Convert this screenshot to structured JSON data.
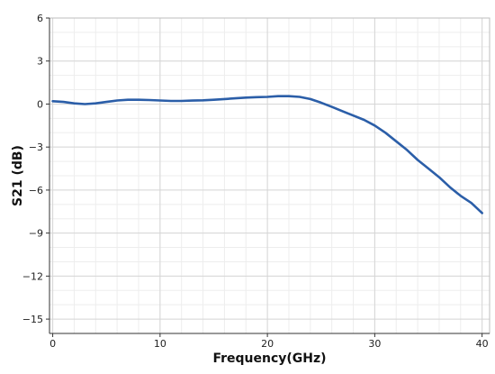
{
  "chart_data": {
    "type": "line",
    "title": "",
    "xlabel": "Frequency(GHz)",
    "ylabel": "S21 (dB)",
    "xlim": [
      -0.3,
      40.7
    ],
    "ylim": [
      -16,
      6
    ],
    "xticks": [
      0,
      10,
      20,
      30,
      40
    ],
    "yticks": [
      6,
      3,
      0,
      -3,
      -6,
      -9,
      -12,
      -15
    ],
    "xtick_labels": [
      "0",
      "10",
      "20",
      "30",
      "40"
    ],
    "ytick_labels": [
      "6",
      "3",
      "0",
      "−3",
      "−6",
      "−9",
      "−12",
      "−15"
    ],
    "x_minor_step": 2,
    "y_minor_step": 1,
    "grid": true,
    "series": [
      {
        "color": "#2b5ea8",
        "x": [
          0,
          1,
          2,
          3,
          4,
          5,
          6,
          7,
          8,
          9,
          10,
          11,
          12,
          13,
          14,
          15,
          16,
          17,
          18,
          19,
          20,
          21,
          22,
          23,
          24,
          25,
          26,
          27,
          28,
          29,
          30,
          31,
          32,
          33,
          34,
          35,
          36,
          37,
          38,
          39,
          40
        ],
        "y": [
          0.2,
          0.15,
          0.05,
          0.0,
          0.05,
          0.15,
          0.25,
          0.3,
          0.3,
          0.28,
          0.25,
          0.22,
          0.22,
          0.24,
          0.26,
          0.3,
          0.35,
          0.4,
          0.45,
          0.48,
          0.5,
          0.55,
          0.55,
          0.5,
          0.35,
          0.1,
          -0.2,
          -0.5,
          -0.8,
          -1.1,
          -1.5,
          -2.0,
          -2.6,
          -3.2,
          -3.9,
          -4.5,
          -5.1,
          -5.8,
          -6.4,
          -6.9,
          -7.6
        ]
      }
    ]
  }
}
